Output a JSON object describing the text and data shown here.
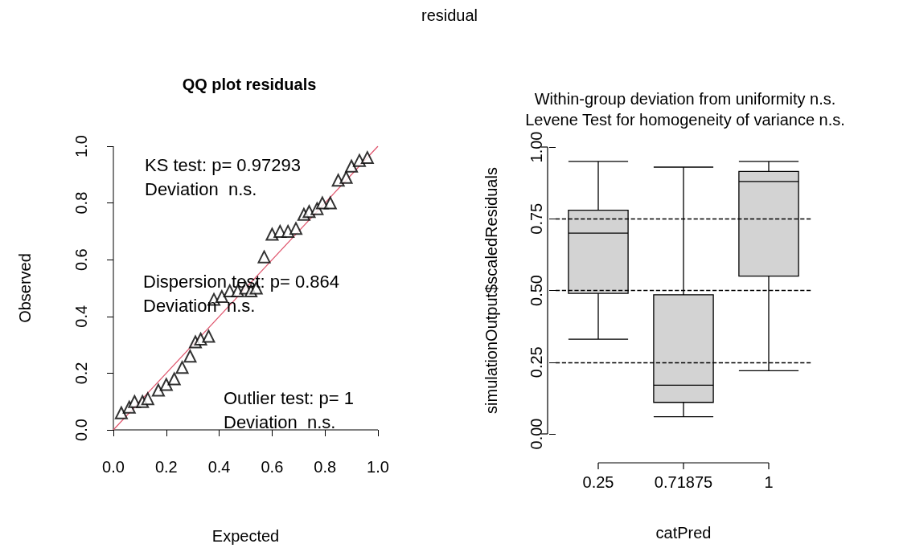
{
  "chart_data": [
    {
      "type": "scatter",
      "title": "QQ plot residuals",
      "xlabel": "Expected",
      "ylabel": "Observed",
      "annotations": [
        "residual",
        "KS test: p= 0.97293\nDeviation  n.s.",
        "Dispersion test: p= 0.864\nDeviation  n.s.",
        "Outlier test: p= 1\nDeviation  n.s."
      ],
      "series": [
        {
          "type": "scatter",
          "color": "#000000",
          "marker": "triangle",
          "x": [
            0.03,
            0.06,
            0.08,
            0.11,
            0.13,
            0.17,
            0.2,
            0.23,
            0.26,
            0.29,
            0.31,
            0.33,
            0.36,
            0.38,
            0.41,
            0.44,
            0.47,
            0.5,
            0.52,
            0.54,
            0.57,
            0.6,
            0.63,
            0.66,
            0.69,
            0.72,
            0.74,
            0.77,
            0.79,
            0.82,
            0.85,
            0.88,
            0.9,
            0.93,
            0.96
          ],
          "values": [
            0.06,
            0.08,
            0.1,
            0.1,
            0.11,
            0.14,
            0.16,
            0.18,
            0.22,
            0.26,
            0.31,
            0.32,
            0.33,
            0.46,
            0.47,
            0.49,
            0.49,
            0.5,
            0.49,
            0.5,
            0.61,
            0.69,
            0.7,
            0.7,
            0.71,
            0.76,
            0.77,
            0.78,
            0.8,
            0.8,
            0.88,
            0.89,
            0.93,
            0.95,
            0.96
          ]
        },
        {
          "type": "line",
          "color": "#df536b",
          "marker": "none",
          "x": [
            0,
            1
          ],
          "values": [
            0,
            1
          ]
        }
      ],
      "xlim": [
        0,
        1
      ],
      "ylim": [
        0,
        1
      ],
      "xticks": [
        {
          "value": 0,
          "label": "0.0"
        },
        0.2,
        0.4,
        0.6,
        0.8,
        {
          "value": 1,
          "label": "1.0"
        }
      ],
      "yticks": [
        {
          "value": 0,
          "label": "0.0"
        },
        0.2,
        0.4,
        0.6,
        0.8,
        {
          "value": 1,
          "label": "1.0"
        }
      ],
      "grid": false
    },
    {
      "type": "box",
      "title": "Within-group deviation from uniformity n.s.",
      "subtitle": "Levene Test for homogeneity of variance n.s.",
      "xlabel": "catPred",
      "ylabel": "simulationOutput$scaledResiduals",
      "categories": [
        "0.25",
        "0.71875",
        "1"
      ],
      "boxes": [
        {
          "low": 0.33,
          "q1": 0.49,
          "median": 0.7,
          "q3": 0.78,
          "high": 0.95
        },
        {
          "low": 0.06,
          "q1": 0.11,
          "median": 0.17,
          "q3": 0.485,
          "high": 0.93
        },
        {
          "low": 0.22,
          "q1": 0.55,
          "median": 0.88,
          "q3": 0.915,
          "high": 0.95
        }
      ],
      "color": "#d3d3d3",
      "ylim": [
        0,
        1
      ],
      "yticks": [
        {
          "value": 0,
          "label": "0.00"
        },
        0.25,
        {
          "value": 0.5,
          "label": "0.50"
        },
        0.75,
        {
          "value": 1,
          "label": "1.00"
        }
      ],
      "ref_lines": [
        {
          "axis": "y",
          "value": 0.25,
          "line_style": "dashed",
          "color": "#000000"
        },
        {
          "axis": "y",
          "value": 0.5,
          "line_style": "dashed",
          "color": "#000000"
        },
        {
          "axis": "y",
          "value": 0.75,
          "line_style": "dashed",
          "color": "#000000"
        }
      ],
      "grid": false
    }
  ]
}
